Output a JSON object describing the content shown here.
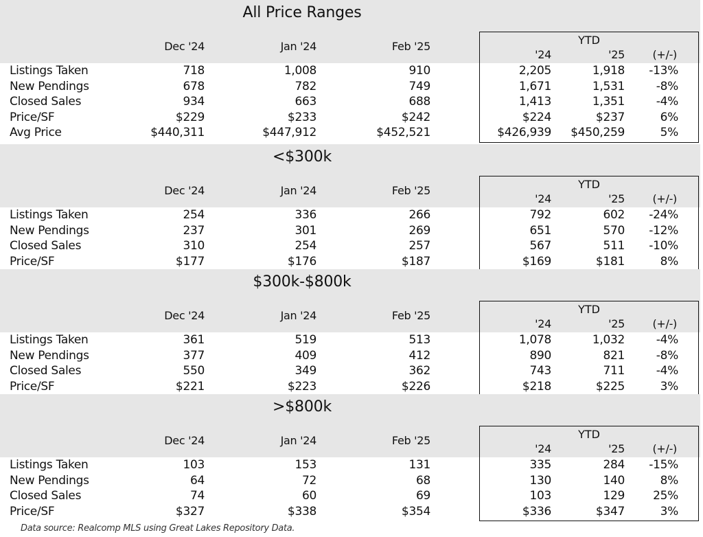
{
  "headers": {
    "dec": "Dec '24",
    "jan": "Jan '24",
    "feb": "Feb '25",
    "ytd": "YTD",
    "y24": "'24",
    "y25": "'25",
    "diff": "(+/-)"
  },
  "sections": [
    {
      "title": "All Price Ranges",
      "rows": [
        {
          "label": "Listings Taken",
          "values": [
            "718",
            "1,008",
            "910",
            "2,205",
            "1,918",
            "-13%"
          ]
        },
        {
          "label": "New Pendings",
          "values": [
            "678",
            "782",
            "749",
            "1,671",
            "1,531",
            "-8%"
          ]
        },
        {
          "label": "Closed Sales",
          "values": [
            "934",
            "663",
            "688",
            "1,413",
            "1,351",
            "-4%"
          ]
        },
        {
          "label": "Price/SF",
          "values": [
            "$229",
            "$233",
            "$242",
            "$224",
            "$237",
            "6%"
          ]
        },
        {
          "label": "Avg Price",
          "values": [
            "$440,311",
            "$447,912",
            "$452,521",
            "$426,939",
            "$450,259",
            "5%"
          ]
        }
      ]
    },
    {
      "title": "<$300k",
      "rows": [
        {
          "label": "Listings Taken",
          "values": [
            "254",
            "336",
            "266",
            "792",
            "602",
            "-24%"
          ]
        },
        {
          "label": "New Pendings",
          "values": [
            "237",
            "301",
            "269",
            "651",
            "570",
            "-12%"
          ]
        },
        {
          "label": "Closed Sales",
          "values": [
            "310",
            "254",
            "257",
            "567",
            "511",
            "-10%"
          ]
        },
        {
          "label": "Price/SF",
          "values": [
            "$177",
            "$176",
            "$187",
            "$169",
            "$181",
            "8%"
          ]
        }
      ]
    },
    {
      "title": "$300k-$800k",
      "rows": [
        {
          "label": "Listings Taken",
          "values": [
            "361",
            "519",
            "513",
            "1,078",
            "1,032",
            "-4%"
          ]
        },
        {
          "label": "New Pendings",
          "values": [
            "377",
            "409",
            "412",
            "890",
            "821",
            "-8%"
          ]
        },
        {
          "label": "Closed Sales",
          "values": [
            "550",
            "349",
            "362",
            "743",
            "711",
            "-4%"
          ]
        },
        {
          "label": "Price/SF",
          "values": [
            "$221",
            "$223",
            "$226",
            "$218",
            "$225",
            "3%"
          ]
        }
      ]
    },
    {
      "title": ">$800k",
      "rows": [
        {
          "label": "Listings Taken",
          "values": [
            "103",
            "153",
            "131",
            "335",
            "284",
            "-15%"
          ]
        },
        {
          "label": "New Pendings",
          "values": [
            "64",
            "72",
            "68",
            "130",
            "140",
            "8%"
          ]
        },
        {
          "label": "Closed Sales",
          "values": [
            "74",
            "60",
            "69",
            "103",
            "129",
            "25%"
          ]
        },
        {
          "label": "Price/SF",
          "values": [
            "$327",
            "$338",
            "$354",
            "$336",
            "$347",
            "3%"
          ]
        }
      ]
    }
  ],
  "footer": "Data source: Realcomp MLS using Great Lakes Repository Data."
}
